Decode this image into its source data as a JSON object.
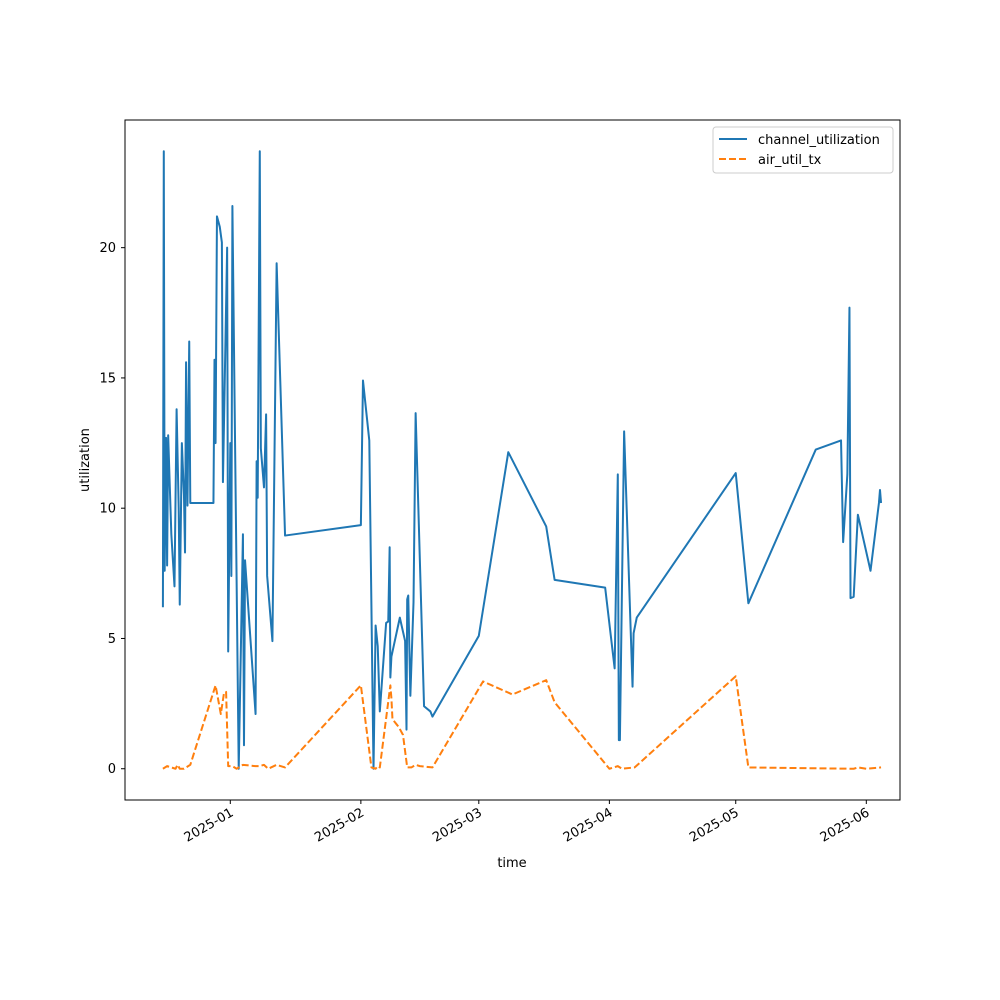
{
  "chart_data": {
    "type": "line",
    "title": "",
    "xlabel": "time",
    "ylabel": "utilization",
    "x_is_date": true,
    "xlim": [
      "2024-12-07",
      "2025-06-09"
    ],
    "ylim": [
      -1.2,
      24.9
    ],
    "x_ticks": [
      "2025-01-01",
      "2025-02-01",
      "2025-03-01",
      "2025-04-01",
      "2025-05-01",
      "2025-06-01"
    ],
    "x_tick_labels": [
      "2025-01",
      "2025-02",
      "2025-03",
      "2025-04",
      "2025-05",
      "2025-06"
    ],
    "y_ticks": [
      0,
      5,
      10,
      15,
      20
    ],
    "y_tick_labels": [
      "0",
      "5",
      "10",
      "15",
      "20"
    ],
    "grid": false,
    "legend_position": "upper right",
    "series": [
      {
        "name": "channel_utilization",
        "color": "#1f77b4",
        "style": "solid",
        "points": [
          [
            "2024-12-16T00:00",
            6.2
          ],
          [
            "2024-12-16T05:00",
            23.7
          ],
          [
            "2024-12-16T10:00",
            7.6
          ],
          [
            "2024-12-16T18:00",
            12.7
          ],
          [
            "2024-12-17T00:00",
            7.8
          ],
          [
            "2024-12-17T06:00",
            12.8
          ],
          [
            "2024-12-18T00:00",
            9.0
          ],
          [
            "2024-12-18T18:00",
            7.0
          ],
          [
            "2024-12-19T06:00",
            13.8
          ],
          [
            "2024-12-19T18:00",
            10.0
          ],
          [
            "2024-12-20T00:00",
            6.3
          ],
          [
            "2024-12-20T12:00",
            12.5
          ],
          [
            "2024-12-21T00:00",
            10.5
          ],
          [
            "2024-12-21T06:00",
            8.3
          ],
          [
            "2024-12-21T12:00",
            15.6
          ],
          [
            "2024-12-21T20:00",
            10.1
          ],
          [
            "2024-12-22T06:00",
            16.4
          ],
          [
            "2024-12-22T12:00",
            10.2
          ],
          [
            "2024-12-28T00:00",
            10.2
          ],
          [
            "2024-12-28T06:00",
            15.7
          ],
          [
            "2024-12-28T12:00",
            12.5
          ],
          [
            "2024-12-28T20:00",
            21.2
          ],
          [
            "2024-12-29T12:00",
            20.8
          ],
          [
            "2024-12-30T00:00",
            20.2
          ],
          [
            "2024-12-30T06:00",
            11.0
          ],
          [
            "2024-12-31T06:00",
            20.0
          ],
          [
            "2024-12-31T12:00",
            4.5
          ],
          [
            "2025-01-01T00:00",
            12.5
          ],
          [
            "2025-01-01T06:00",
            7.4
          ],
          [
            "2025-01-01T12:00",
            21.6
          ],
          [
            "2025-01-03T00:00",
            0.0
          ],
          [
            "2025-01-04T00:00",
            9.0
          ],
          [
            "2025-01-04T06:00",
            0.9
          ],
          [
            "2025-01-04T12:00",
            8.0
          ],
          [
            "2025-01-07T00:00",
            2.1
          ],
          [
            "2025-01-07T06:00",
            11.8
          ],
          [
            "2025-01-07T12:00",
            10.4
          ],
          [
            "2025-01-08T00:00",
            23.7
          ],
          [
            "2025-01-08T06:00",
            12.3
          ],
          [
            "2025-01-09T00:00",
            10.8
          ],
          [
            "2025-01-09T12:00",
            13.6
          ],
          [
            "2025-01-09T18:00",
            7.4
          ],
          [
            "2025-01-11T00:00",
            4.9
          ],
          [
            "2025-01-12T00:00",
            19.4
          ],
          [
            "2025-01-14T00:00",
            8.95
          ],
          [
            "2025-02-01T00:00",
            9.35
          ],
          [
            "2025-02-01T12:00",
            14.9
          ],
          [
            "2025-02-03T00:00",
            12.6
          ],
          [
            "2025-02-04T00:00",
            0.0
          ],
          [
            "2025-02-04T12:00",
            5.5
          ],
          [
            "2025-02-05T00:00",
            4.7
          ],
          [
            "2025-02-05T12:00",
            2.2
          ],
          [
            "2025-02-07T00:00",
            5.6
          ],
          [
            "2025-02-07T12:00",
            5.65
          ],
          [
            "2025-02-07T20:00",
            8.5
          ],
          [
            "2025-02-08T00:00",
            3.5
          ],
          [
            "2025-02-08T06:00",
            4.3
          ],
          [
            "2025-02-10T06:00",
            5.8
          ],
          [
            "2025-02-11T12:00",
            4.9
          ],
          [
            "2025-02-11T20:00",
            1.5
          ],
          [
            "2025-02-12T00:00",
            6.5
          ],
          [
            "2025-02-12T06:00",
            6.65
          ],
          [
            "2025-02-12T18:00",
            2.8
          ],
          [
            "2025-02-13T12:00",
            6.4
          ],
          [
            "2025-02-14T00:00",
            13.65
          ],
          [
            "2025-02-16T00:00",
            2.4
          ],
          [
            "2025-02-17T12:00",
            2.2
          ],
          [
            "2025-02-18T00:00",
            2.0
          ],
          [
            "2025-03-01T00:00",
            5.1
          ],
          [
            "2025-03-08T00:00",
            12.15
          ],
          [
            "2025-03-17T00:00",
            9.3
          ],
          [
            "2025-03-19T00:00",
            7.25
          ],
          [
            "2025-03-31T00:00",
            6.95
          ],
          [
            "2025-04-02T06:00",
            3.85
          ],
          [
            "2025-04-03T00:00",
            11.3
          ],
          [
            "2025-04-03T06:00",
            1.1
          ],
          [
            "2025-04-03T12:00",
            1.1
          ],
          [
            "2025-04-04T12:00",
            12.95
          ],
          [
            "2025-04-06T12:00",
            3.15
          ],
          [
            "2025-04-06T18:00",
            5.2
          ],
          [
            "2025-04-07T12:00",
            5.8
          ],
          [
            "2025-05-01T00:00",
            11.35
          ],
          [
            "2025-05-04T00:00",
            6.35
          ],
          [
            "2025-05-20T00:00",
            12.25
          ],
          [
            "2025-05-26T00:00",
            12.6
          ],
          [
            "2025-05-26T12:00",
            8.7
          ],
          [
            "2025-05-27T12:00",
            11.3
          ],
          [
            "2025-05-28T00:00",
            17.7
          ],
          [
            "2025-05-28T06:00",
            6.55
          ],
          [
            "2025-05-29T00:00",
            6.6
          ],
          [
            "2025-05-30T00:00",
            9.75
          ],
          [
            "2025-06-02T00:00",
            7.6
          ],
          [
            "2025-06-04T00:00",
            10.2
          ],
          [
            "2025-06-04T06:00",
            10.7
          ],
          [
            "2025-06-04T12:00",
            10.2
          ]
        ]
      },
      {
        "name": "air_util_tx",
        "color": "#ff7f0e",
        "style": "dashed",
        "points": [
          [
            "2024-12-16T00:00",
            0.0
          ],
          [
            "2024-12-17T00:00",
            0.1
          ],
          [
            "2024-12-18T00:00",
            0.05
          ],
          [
            "2024-12-19T00:00",
            0.0
          ],
          [
            "2024-12-19T12:00",
            0.15
          ],
          [
            "2024-12-20T00:00",
            0.0
          ],
          [
            "2024-12-21T00:00",
            0.0
          ],
          [
            "2024-12-22T00:00",
            0.1
          ],
          [
            "2024-12-22T12:00",
            0.15
          ],
          [
            "2024-12-28T12:00",
            3.2
          ],
          [
            "2024-12-29T18:00",
            2.1
          ],
          [
            "2024-12-30T12:00",
            2.9
          ],
          [
            "2024-12-31T00:00",
            2.95
          ],
          [
            "2024-12-31T12:00",
            0.1
          ],
          [
            "2025-01-01T12:00",
            0.1
          ],
          [
            "2025-01-02T12:00",
            0.0
          ],
          [
            "2025-01-04T00:00",
            0.15
          ],
          [
            "2025-01-07T00:00",
            0.1
          ],
          [
            "2025-01-08T00:00",
            0.1
          ],
          [
            "2025-01-09T00:00",
            0.15
          ],
          [
            "2025-01-10T00:00",
            0.0
          ],
          [
            "2025-01-12T00:00",
            0.15
          ],
          [
            "2025-01-14T00:00",
            0.05
          ],
          [
            "2025-02-01T00:00",
            3.2
          ],
          [
            "2025-02-03T12:00",
            0.05
          ],
          [
            "2025-02-04T12:00",
            0.0
          ],
          [
            "2025-02-05T00:00",
            0.1
          ],
          [
            "2025-02-05T12:00",
            0.05
          ],
          [
            "2025-02-08T00:00",
            3.2
          ],
          [
            "2025-02-08T06:00",
            2.7
          ],
          [
            "2025-02-08T12:00",
            1.9
          ],
          [
            "2025-02-09T12:00",
            1.7
          ],
          [
            "2025-02-10T00:00",
            1.6
          ],
          [
            "2025-02-11T00:00",
            1.3
          ],
          [
            "2025-02-12T00:00",
            0.05
          ],
          [
            "2025-02-13T00:00",
            0.05
          ],
          [
            "2025-02-14T00:00",
            0.15
          ],
          [
            "2025-02-15T00:00",
            0.1
          ],
          [
            "2025-02-18T00:00",
            0.05
          ],
          [
            "2025-03-02T00:00",
            3.35
          ],
          [
            "2025-03-09T00:00",
            2.85
          ],
          [
            "2025-03-17T00:00",
            3.4
          ],
          [
            "2025-03-19T00:00",
            2.55
          ],
          [
            "2025-04-01T00:00",
            0.0
          ],
          [
            "2025-04-03T00:00",
            0.1
          ],
          [
            "2025-04-04T00:00",
            0.0
          ],
          [
            "2025-04-07T00:00",
            0.05
          ],
          [
            "2025-05-01T00:00",
            3.55
          ],
          [
            "2025-05-04T00:00",
            0.05
          ],
          [
            "2025-05-29T00:00",
            0.0
          ],
          [
            "2025-05-30T00:00",
            0.05
          ],
          [
            "2025-06-01T00:00",
            0.0
          ],
          [
            "2025-06-04T12:00",
            0.05
          ]
        ]
      }
    ]
  }
}
